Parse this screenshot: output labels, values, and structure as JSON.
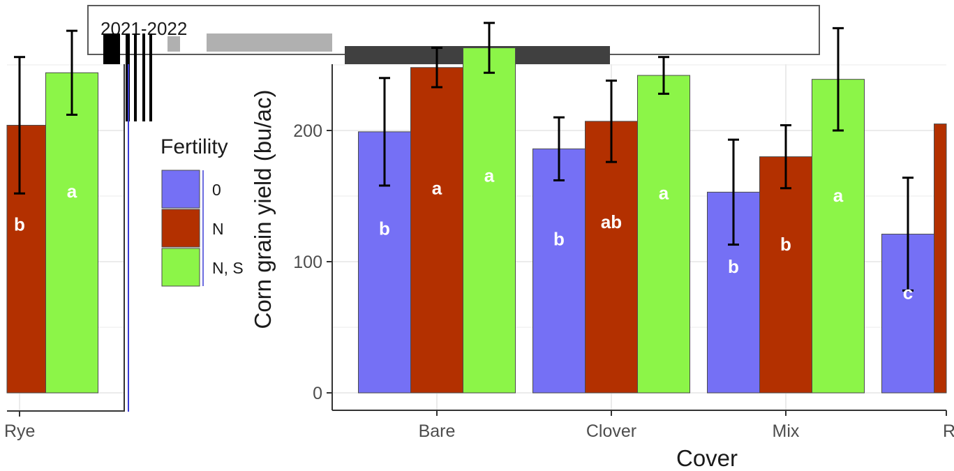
{
  "chart_data": {
    "type": "bar",
    "title": "2021-2022",
    "xlabel": "Cover",
    "ylabel": "Corn grain yield (bu/ac)",
    "y_ticks": [
      0,
      100,
      200
    ],
    "grid": true,
    "legend": {
      "title": "Fertility",
      "placement": "left",
      "entries": [
        "0",
        "N",
        "N, S"
      ]
    },
    "categories": [
      "Bare",
      "Clover",
      "Mix",
      "R",
      "Rye"
    ],
    "series": [
      {
        "name": "0",
        "color": "#7570f5",
        "values": [
          199,
          186,
          153,
          121,
          null
        ],
        "err": [
          41,
          24,
          40,
          43,
          null
        ],
        "letters": [
          "b",
          "b",
          "b",
          "c",
          ""
        ]
      },
      {
        "name": "N",
        "color": "#b33000",
        "values": [
          248,
          207,
          180,
          205,
          204
        ],
        "err": [
          15,
          31,
          24,
          null,
          52
        ],
        "letters": [
          "a",
          "ab",
          "b",
          "",
          "b"
        ]
      },
      {
        "name": "N, S",
        "color": "#8cf548",
        "values": [
          263,
          242,
          239,
          null,
          244
        ],
        "err": [
          19,
          14,
          39,
          null,
          32
        ],
        "letters": [
          "a",
          "a",
          "a",
          "",
          "a"
        ]
      }
    ]
  }
}
